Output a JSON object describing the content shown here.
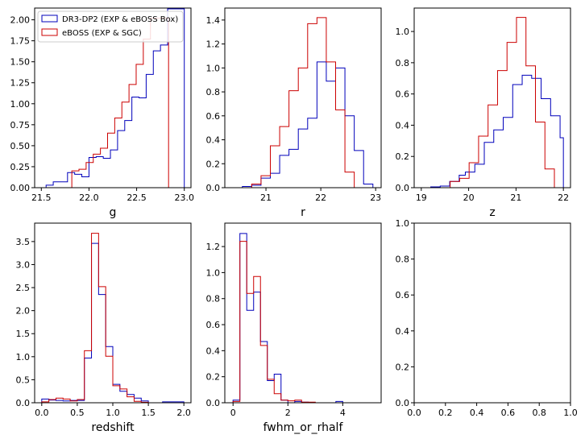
{
  "chart_data": [
    {
      "type": "histogram",
      "xlabel": "g",
      "xlim": [
        21.43,
        23.07
      ],
      "ylim": [
        0,
        2.14
      ],
      "xticks": [
        "21.5",
        "22.0",
        "22.5",
        "23.0"
      ],
      "xtick_values": [
        21.5,
        22.0,
        22.5,
        23.0
      ],
      "yticks": [
        "0.00",
        "0.25",
        "0.50",
        "0.75",
        "1.00",
        "1.25",
        "1.50",
        "1.75",
        "2.00"
      ],
      "ytick_values": [
        0,
        0.25,
        0.5,
        0.75,
        1.0,
        1.25,
        1.5,
        1.75,
        2.0
      ],
      "legend": {
        "placement": "upper left",
        "entries": [
          "DR3-DP2 (EXP & eBOSS Box)",
          "eBOSS (EXP & SGC)"
        ]
      },
      "series": [
        {
          "name": "DR3-DP2 (EXP & eBOSS Box)",
          "color": "#0000bb",
          "edges": [
            21.55,
            21.625,
            21.7,
            21.775,
            21.85,
            21.925,
            22.0,
            22.075,
            22.15,
            22.225,
            22.3,
            22.375,
            22.45,
            22.525,
            22.6,
            22.675,
            22.75,
            22.825,
            22.9,
            22.975,
            23.0
          ],
          "values": [
            0.03,
            0.07,
            0.07,
            0.18,
            0.16,
            0.13,
            0.36,
            0.37,
            0.35,
            0.45,
            0.68,
            0.8,
            1.08,
            1.07,
            1.35,
            1.63,
            1.7,
            2.13,
            2.13,
            2.13
          ]
        },
        {
          "name": "eBOSS (EXP & SGC)",
          "color": "#cc0000",
          "edges": [
            21.82,
            21.895,
            21.97,
            22.045,
            22.12,
            22.195,
            22.27,
            22.345,
            22.42,
            22.495,
            22.57,
            22.645,
            22.72,
            22.795,
            22.835
          ],
          "values": [
            0.2,
            0.22,
            0.3,
            0.4,
            0.47,
            0.65,
            0.83,
            1.02,
            1.23,
            1.47,
            1.77,
            2.02,
            2.02,
            2.02
          ]
        }
      ]
    },
    {
      "type": "histogram",
      "xlabel": "r",
      "xlim": [
        20.25,
        23.1
      ],
      "ylim": [
        0,
        1.5
      ],
      "xticks": [
        "21",
        "22",
        "23"
      ],
      "xtick_values": [
        21,
        22,
        23
      ],
      "yticks": [
        "0.0",
        "0.2",
        "0.4",
        "0.6",
        "0.8",
        "1.0",
        "1.2",
        "1.4"
      ],
      "ytick_values": [
        0,
        0.2,
        0.4,
        0.6,
        0.8,
        1.0,
        1.2,
        1.4
      ],
      "series": [
        {
          "name": "DR3-DP2 (EXP & eBOSS Box)",
          "color": "#0000bb",
          "edges": [
            20.4,
            20.57,
            20.74,
            20.91,
            21.08,
            21.25,
            21.42,
            21.59,
            21.76,
            21.93,
            22.1,
            22.27,
            22.44,
            22.61,
            22.78,
            22.95
          ],
          "values": [
            0.0,
            0.01,
            0.02,
            0.08,
            0.12,
            0.27,
            0.32,
            0.49,
            0.58,
            1.05,
            0.89,
            1.0,
            0.6,
            0.31,
            0.03
          ]
        },
        {
          "name": "eBOSS (EXP & SGC)",
          "color": "#cc0000",
          "edges": [
            20.74,
            20.91,
            21.08,
            21.25,
            21.42,
            21.59,
            21.76,
            21.93,
            22.1,
            22.27,
            22.44,
            22.61
          ],
          "values": [
            0.03,
            0.1,
            0.35,
            0.51,
            0.81,
            1.0,
            1.37,
            1.42,
            1.05,
            0.65,
            0.13
          ]
        }
      ]
    },
    {
      "type": "histogram",
      "xlabel": "z",
      "xlim": [
        18.85,
        22.15
      ],
      "ylim": [
        0,
        1.15
      ],
      "xticks": [
        "19",
        "20",
        "21",
        "22"
      ],
      "xtick_values": [
        19,
        20,
        21,
        22
      ],
      "yticks": [
        "0.0",
        "0.2",
        "0.4",
        "0.6",
        "0.8",
        "1.0"
      ],
      "ytick_values": [
        0,
        0.2,
        0.4,
        0.6,
        0.8,
        1.0
      ],
      "series": [
        {
          "name": "DR3-DP2 (EXP & eBOSS Box)",
          "color": "#0000bb",
          "edges": [
            19.0,
            19.2,
            19.4,
            19.6,
            19.8,
            19.93,
            20.13,
            20.33,
            20.53,
            20.73,
            20.93,
            21.13,
            21.33,
            21.53,
            21.73,
            21.93,
            22.0
          ],
          "values": [
            0.0,
            0.005,
            0.01,
            0.04,
            0.08,
            0.1,
            0.15,
            0.29,
            0.37,
            0.45,
            0.66,
            0.72,
            0.7,
            0.57,
            0.46,
            0.32
          ]
        },
        {
          "name": "eBOSS (EXP & SGC)",
          "color": "#cc0000",
          "edges": [
            19.61,
            19.81,
            20.01,
            20.21,
            20.41,
            20.61,
            20.81,
            21.01,
            21.21,
            21.41,
            21.61,
            21.81
          ],
          "values": [
            0.04,
            0.06,
            0.16,
            0.33,
            0.53,
            0.75,
            0.93,
            1.09,
            0.78,
            0.42,
            0.12
          ]
        }
      ]
    },
    {
      "type": "histogram",
      "xlabel": "redshift",
      "xlim": [
        -0.1,
        2.1
      ],
      "ylim": [
        0,
        3.9
      ],
      "xticks": [
        "0.0",
        "0.5",
        "1.0",
        "1.5",
        "2.0"
      ],
      "xtick_values": [
        0,
        0.5,
        1.0,
        1.5,
        2.0
      ],
      "yticks": [
        "0.0",
        "0.5",
        "1.0",
        "1.5",
        "2.0",
        "2.5",
        "3.0",
        "3.5"
      ],
      "ytick_values": [
        0,
        0.5,
        1.0,
        1.5,
        2.0,
        2.5,
        3.0,
        3.5
      ],
      "series": [
        {
          "name": "DR3-DP2 (EXP & eBOSS Box)",
          "color": "#0000bb",
          "edges": [
            0.0,
            0.1,
            0.2,
            0.3,
            0.4,
            0.5,
            0.6,
            0.7,
            0.8,
            0.9,
            1.0,
            1.1,
            1.2,
            1.3,
            1.4,
            1.5,
            1.6,
            1.7,
            1.8,
            1.9,
            2.0
          ],
          "values": [
            0.08,
            0.06,
            0.05,
            0.04,
            0.05,
            0.05,
            0.97,
            3.46,
            2.35,
            1.22,
            0.4,
            0.25,
            0.18,
            0.1,
            0.04,
            0.0,
            0.0,
            0.02,
            0.02,
            0.02
          ]
        },
        {
          "name": "eBOSS (EXP & SGC)",
          "color": "#cc0000",
          "edges": [
            0.0,
            0.1,
            0.2,
            0.3,
            0.4,
            0.5,
            0.6,
            0.7,
            0.8,
            0.9,
            1.0,
            1.1,
            1.2,
            1.3,
            1.4,
            1.5
          ],
          "values": [
            0.02,
            0.07,
            0.1,
            0.08,
            0.04,
            0.07,
            1.13,
            3.68,
            2.52,
            1.01,
            0.37,
            0.3,
            0.13,
            0.03,
            0.01
          ]
        }
      ]
    },
    {
      "type": "histogram",
      "xlabel": "fwhm_or_rhalf",
      "xlim": [
        -0.3,
        5.4
      ],
      "ylim": [
        0,
        1.38
      ],
      "xticks": [
        "0",
        "2",
        "4"
      ],
      "xtick_values": [
        0,
        2,
        4
      ],
      "yticks": [
        "0.0",
        "0.2",
        "0.4",
        "0.6",
        "0.8",
        "1.0",
        "1.2"
      ],
      "ytick_values": [
        0,
        0.2,
        0.4,
        0.6,
        0.8,
        1.0,
        1.2
      ],
      "series": [
        {
          "name": "DR3-DP2 (EXP & eBOSS Box)",
          "color": "#0000bb",
          "edges": [
            0.0,
            0.25,
            0.5,
            0.75,
            1.0,
            1.25,
            1.5,
            1.75,
            2.0,
            2.25,
            2.5,
            2.75,
            3.0,
            3.25,
            3.5,
            3.75,
            4.0,
            4.25
          ],
          "values": [
            0.02,
            1.3,
            0.71,
            0.85,
            0.47,
            0.17,
            0.22,
            0.02,
            0.0,
            0.01,
            0.005,
            0.0,
            0.0,
            0.0,
            0.0,
            0.01,
            0.0
          ]
        },
        {
          "name": "eBOSS (EXP & SGC)",
          "color": "#cc0000",
          "edges": [
            0.0,
            0.25,
            0.5,
            0.75,
            1.0,
            1.25,
            1.5,
            1.75,
            2.0,
            2.25,
            2.5,
            2.75,
            3.0
          ],
          "values": [
            0.01,
            1.24,
            0.84,
            0.97,
            0.44,
            0.18,
            0.07,
            0.02,
            0.015,
            0.02,
            0.005,
            0.005
          ]
        }
      ]
    },
    {
      "type": "empty",
      "xlim": [
        0,
        1
      ],
      "ylim": [
        0,
        1
      ],
      "xticks": [
        "0.0",
        "0.2",
        "0.4",
        "0.6",
        "0.8",
        "1.0"
      ],
      "xtick_values": [
        0,
        0.2,
        0.4,
        0.6,
        0.8,
        1.0
      ],
      "yticks": [
        "0.0",
        "0.2",
        "0.4",
        "0.6",
        "0.8",
        "1.0"
      ],
      "ytick_values": [
        0,
        0.2,
        0.4,
        0.6,
        0.8,
        1.0
      ],
      "series": []
    }
  ]
}
